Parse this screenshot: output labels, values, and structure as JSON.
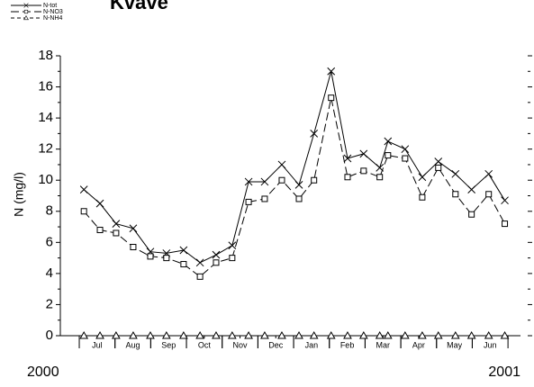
{
  "chart_data": {
    "type": "line",
    "title": "Kväve",
    "y_label": "N (mg/l)",
    "annotations": [
      "2000",
      "2001"
    ],
    "xlim": [
      -0.53,
      12.35
    ],
    "xticks": [
      {
        "value": 0.5,
        "label": "Jul"
      },
      {
        "value": 1.5,
        "label": "Aug"
      },
      {
        "value": 2.5,
        "label": "Sep"
      },
      {
        "value": 3.5,
        "label": "Oct"
      },
      {
        "value": 4.5,
        "label": "Nov"
      },
      {
        "value": 5.5,
        "label": "Dec"
      },
      {
        "value": 6.5,
        "label": "Jan"
      },
      {
        "value": 7.5,
        "label": "Feb"
      },
      {
        "value": 8.5,
        "label": "Mar"
      },
      {
        "value": 9.5,
        "label": "Apr"
      },
      {
        "value": 10.5,
        "label": "May"
      },
      {
        "value": 11.5,
        "label": "Jun"
      }
    ],
    "ylim": [
      0,
      18
    ],
    "yticks": [
      0,
      2,
      4,
      6,
      8,
      10,
      12,
      14,
      16,
      18
    ],
    "x": [
      0.13,
      0.58,
      1.03,
      1.51,
      1.99,
      2.44,
      2.92,
      3.38,
      3.83,
      4.28,
      4.74,
      5.19,
      5.67,
      6.15,
      6.57,
      7.05,
      7.51,
      7.96,
      8.41,
      8.64,
      9.12,
      9.6,
      10.05,
      10.53,
      10.98,
      11.46,
      11.91
    ],
    "series": [
      {
        "name": "N-tot",
        "color": "#000000",
        "marker": "x",
        "dash": "none",
        "values": [
          9.4,
          8.5,
          7.2,
          6.9,
          5.4,
          5.3,
          5.5,
          4.7,
          5.2,
          5.8,
          9.9,
          9.9,
          11.0,
          9.7,
          13.0,
          17.0,
          11.4,
          11.7,
          10.8,
          12.5,
          12.0,
          10.2,
          11.2,
          10.4,
          9.4,
          10.4,
          8.7
        ]
      },
      {
        "name": "N-NO3",
        "color": "#000000",
        "marker": "square",
        "dash": "9 4",
        "values": [
          8.0,
          6.8,
          6.6,
          5.7,
          5.1,
          5.0,
          4.6,
          3.8,
          4.7,
          5.0,
          8.6,
          8.8,
          10.0,
          8.8,
          10.0,
          15.3,
          10.2,
          10.6,
          10.2,
          11.6,
          11.4,
          8.9,
          10.8,
          9.1,
          7.8,
          9.1,
          7.2
        ]
      },
      {
        "name": "N-NH4",
        "color": "#000000",
        "marker": "triangle",
        "dash": "4 3",
        "values": [
          0,
          0,
          0,
          0,
          0,
          0,
          0,
          0,
          0,
          0,
          0,
          0,
          0,
          0,
          0,
          0,
          0,
          0,
          0,
          0,
          0,
          0,
          0,
          0,
          0,
          0,
          0
        ]
      }
    ]
  }
}
